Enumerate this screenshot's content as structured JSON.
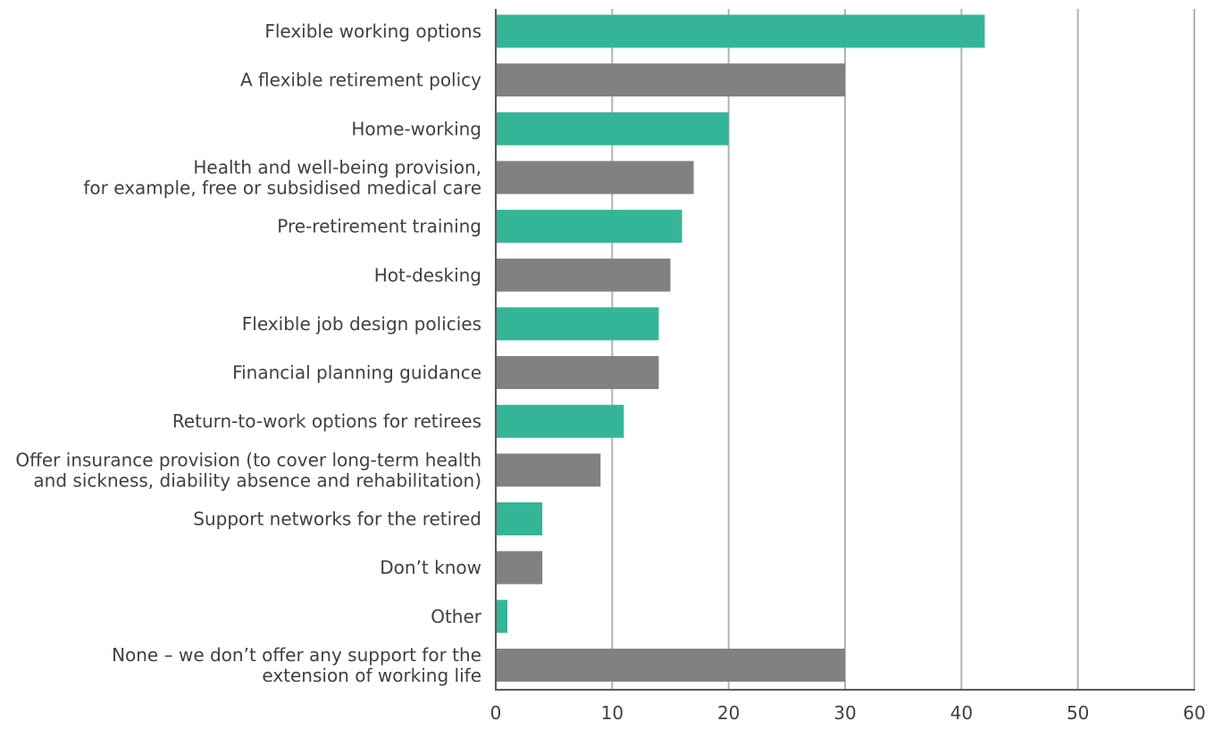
{
  "chart_data": {
    "type": "bar",
    "orientation": "horizontal",
    "title": "",
    "xlabel": "",
    "ylabel": "",
    "xlim": [
      0,
      60
    ],
    "ticks": [
      "0",
      "10",
      "20",
      "30",
      "40",
      "50",
      "60"
    ],
    "grid": true,
    "legend": "none",
    "colors": {
      "teal": "#34b598",
      "grey": "#808183",
      "grid": "#b2b3b5",
      "axis": "#58595b"
    },
    "categories": [
      [
        "Flexible working options"
      ],
      [
        "A flexible retirement policy"
      ],
      [
        "Home-working"
      ],
      [
        "Health and well-being provision,",
        "for example, free or subsidised medical care"
      ],
      [
        "Pre-retirement training"
      ],
      [
        "Hot-desking"
      ],
      [
        "Flexible job design policies"
      ],
      [
        "Financial planning guidance"
      ],
      [
        "Return-to-work options for retirees"
      ],
      [
        "Offer insurance provision (to cover long-term health",
        "and sickness, diability absence and rehabilitation)"
      ],
      [
        "Support networks for the retired"
      ],
      [
        "Don’t know"
      ],
      [
        "Other"
      ],
      [
        "None –  we don’t offer any support for the",
        "extension of working life"
      ]
    ],
    "values": [
      42,
      30,
      20,
      17,
      16,
      15,
      14,
      14,
      11,
      9,
      4,
      4,
      1,
      30
    ],
    "bar_colors": [
      "teal",
      "grey",
      "teal",
      "grey",
      "teal",
      "grey",
      "teal",
      "grey",
      "teal",
      "grey",
      "teal",
      "grey",
      "teal",
      "grey"
    ]
  }
}
